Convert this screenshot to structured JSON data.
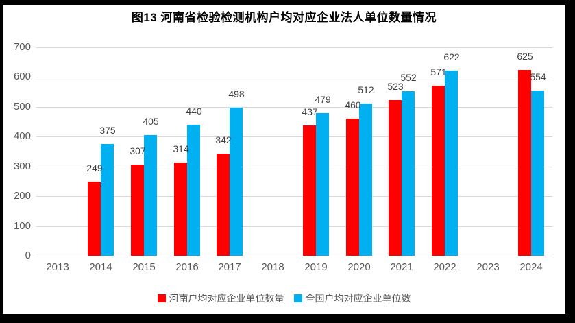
{
  "page": {
    "frame_color": "#000000",
    "card_bg": "#FFFFFF"
  },
  "title": "图13  河南省检验检测机构户均对应企业法人单位数量情况",
  "chart_data": {
    "type": "bar",
    "title": "图13  河南省检验检测机构户均对应企业法人单位数量情况",
    "categories": [
      "2013",
      "2014",
      "2015",
      "2016",
      "2017",
      "2018",
      "2019",
      "2020",
      "2021",
      "2022",
      "2023",
      "2024"
    ],
    "series": [
      {
        "name": "河南户均对应企业单位数量",
        "color": "#FF0000",
        "values": [
          null,
          249,
          307,
          314,
          342,
          null,
          437,
          460,
          523,
          571,
          null,
          625
        ]
      },
      {
        "name": "全国户均对应企业单位数",
        "color": "#00B0F0",
        "values": [
          null,
          375,
          405,
          440,
          498,
          null,
          479,
          512,
          552,
          622,
          null,
          554
        ]
      }
    ],
    "xlabel": "",
    "ylabel": "",
    "ylim": [
      0,
      700
    ],
    "yticks": [
      0,
      100,
      200,
      300,
      400,
      500,
      600,
      700
    ],
    "grid": true,
    "data_labels": true,
    "legend_position": "bottom"
  },
  "styles": {
    "grid_color": "#D9D9D9",
    "axis_line_color": "#D0D0D0",
    "tick_label_color": "#595959",
    "data_label_color": "#404040",
    "legend_text_color": "#595959",
    "title_color": "#000000"
  }
}
